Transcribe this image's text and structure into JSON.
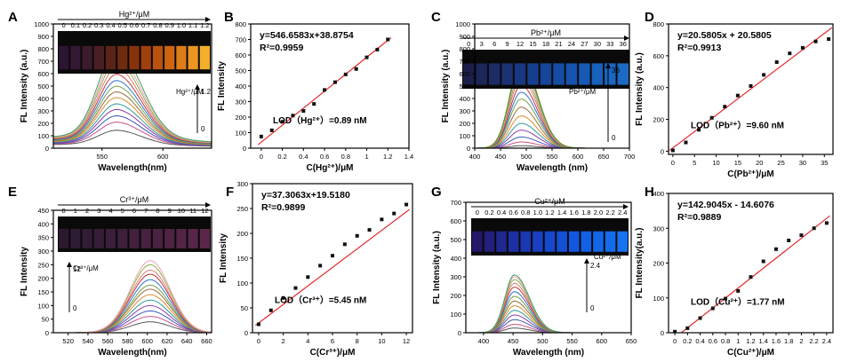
{
  "chart_data": [
    {
      "panel": "A",
      "type": "line",
      "xlabel": "Wavelength(nm)",
      "ylabel": "FL Intensity (a.u.)",
      "xlim": [
        510,
        640
      ],
      "ylim": [
        0,
        1000
      ],
      "xticks": [
        550,
        600
      ],
      "yticks": [
        0,
        100,
        200,
        300,
        400,
        500,
        600,
        700,
        800,
        900,
        1000
      ],
      "photo": {
        "title": "Hg²⁺/μM",
        "labels": [
          "0",
          "0.1",
          "0.2",
          "0.3",
          "0.4",
          "0.5",
          "0.6",
          "0.7",
          "0.8",
          "0.9",
          "1.0",
          "1.1",
          "1.2"
        ],
        "colors": [
          "#2b1530",
          "#321830",
          "#3b1b2c",
          "#4a1f24",
          "#5a2418",
          "#6e2b10",
          "#86330c",
          "#a0400c",
          "#b8520e",
          "#cc6412",
          "#de7c18",
          "#eb9620",
          "#f4b02a"
        ]
      },
      "arrow": {
        "label": "Hg²⁺/μM",
        "top": "1.2",
        "bottom": "0"
      },
      "peak_x": 562,
      "width": 15,
      "peaks": [
        110,
        170,
        215,
        260,
        300,
        345,
        385,
        425,
        465,
        510,
        555,
        600,
        640,
        690
      ],
      "baseline": 160,
      "skew": 1.35
    },
    {
      "panel": "B",
      "type": "scatter",
      "xlabel": "C(Hg²⁺)/μM",
      "ylabel": "FL Intensity",
      "xlim": [
        -0.1,
        1.4
      ],
      "ylim": [
        0,
        800
      ],
      "xticks": [
        0.0,
        0.2,
        0.4,
        0.6,
        0.8,
        1.0,
        1.2,
        1.4
      ],
      "yticks": [
        0,
        100,
        200,
        300,
        400,
        500,
        600,
        700,
        800
      ],
      "x": [
        0.0,
        0.1,
        0.2,
        0.3,
        0.4,
        0.5,
        0.6,
        0.7,
        0.8,
        0.9,
        1.0,
        1.1,
        1.2
      ],
      "y": [
        75,
        115,
        170,
        210,
        240,
        285,
        375,
        425,
        475,
        510,
        585,
        635,
        700
      ],
      "fit": {
        "slope": 546.6583,
        "intercept": 38.8754
      },
      "equation": "y=546.6583x+38.8754",
      "r2": "R²=0.9959",
      "lod": "LOD（Hg²⁺）=0.89 nM"
    },
    {
      "panel": "C",
      "type": "line",
      "xlabel": "Wavelength (nm)",
      "ylabel": "FL Intensity (a.u.)",
      "xlim": [
        400,
        700
      ],
      "ylim": [
        0,
        1000
      ],
      "xticks": [
        400,
        450,
        500,
        550,
        600,
        650,
        700
      ],
      "yticks": [
        0,
        100,
        200,
        300,
        400,
        500,
        600,
        700,
        800,
        900,
        1000
      ],
      "photo": {
        "title": "Pb²⁺/μM",
        "labels": [
          "0",
          "3",
          "6",
          "9",
          "12",
          "15",
          "18",
          "21",
          "24",
          "27",
          "30",
          "33",
          "36"
        ],
        "colors": [
          "#1c1f4a",
          "#1d2658",
          "#1c2c66",
          "#1a3274",
          "#193882",
          "#173e8e",
          "#16459a",
          "#154ca4",
          "#1553ae",
          "#165ab6",
          "#1861bc",
          "#1a66c0",
          "#1c6ac4"
        ]
      },
      "arrow": {
        "label": "Pb²⁺/μM",
        "top": "36",
        "bottom": "0"
      },
      "peak_x": 490,
      "width": 22,
      "peaks": [
        20,
        50,
        90,
        145,
        200,
        260,
        330,
        395,
        450,
        505,
        560,
        605,
        645,
        680,
        705
      ],
      "baseline": 0,
      "skew": 1.45
    },
    {
      "panel": "D",
      "type": "scatter",
      "xlabel": "C(Pb²⁺)/μM",
      "ylabel": "FL Intensity (a.u.)",
      "xlim": [
        -1,
        37
      ],
      "ylim": [
        -20,
        800
      ],
      "xticks": [
        0,
        5,
        10,
        15,
        20,
        25,
        30,
        35
      ],
      "yticks": [
        0,
        200,
        400,
        600,
        800
      ],
      "x": [
        0,
        3,
        6,
        9,
        12,
        15,
        18,
        21,
        24,
        27,
        30,
        33,
        36
      ],
      "y": [
        5,
        55,
        135,
        210,
        280,
        350,
        410,
        480,
        560,
        615,
        650,
        690,
        705
      ],
      "fit": {
        "slope": 20.5805,
        "intercept": 20.5805
      },
      "equation": "y=20.5805x + 20.5805",
      "r2": "R²=0.9913",
      "lod": "LOD（Pb²⁺）=9.60 nM"
    },
    {
      "panel": "E",
      "type": "line",
      "xlabel": "Wavelength(nm)",
      "ylabel": "FL Intensity",
      "xlim": [
        505,
        665
      ],
      "ylim": [
        0,
        450
      ],
      "xticks": [
        520,
        540,
        560,
        580,
        600,
        620,
        640,
        660
      ],
      "yticks": [
        0,
        50,
        100,
        150,
        200,
        250,
        300,
        350,
        400,
        450
      ],
      "photo": {
        "title": "Cr³⁺/μM",
        "labels": [
          "0",
          "1",
          "2",
          "3",
          "4",
          "5",
          "6",
          "7",
          "8",
          "9",
          "10",
          "11",
          "12"
        ],
        "colors": [
          "#2a1a30",
          "#2e1b34",
          "#321c36",
          "#361d38",
          "#3a1e3a",
          "#3e1f3c",
          "#42203e",
          "#462140",
          "#4a2242",
          "#4e2344",
          "#522446",
          "#562548",
          "#5a264a"
        ]
      },
      "arrow": {
        "label": "Cr³⁺/μM",
        "top": "12",
        "bottom": "0"
      },
      "peak_x": 603,
      "width": 20,
      "peaks": [
        40,
        60,
        80,
        100,
        120,
        140,
        160,
        175,
        195,
        215,
        230,
        250,
        265
      ],
      "baseline": 0,
      "skew": 1.0
    },
    {
      "panel": "F",
      "type": "scatter",
      "xlabel": "C(Cr³⁺)/μM",
      "ylabel": "FL Intensity",
      "xlim": [
        -0.5,
        12.5
      ],
      "ylim": [
        0,
        300
      ],
      "xticks": [
        0,
        2,
        4,
        6,
        8,
        10,
        12
      ],
      "yticks": [
        0,
        50,
        100,
        150,
        200,
        250,
        300
      ],
      "x": [
        0,
        1,
        2,
        3,
        4,
        5,
        6,
        7,
        8,
        9,
        10,
        11,
        12
      ],
      "y": [
        17,
        45,
        70,
        90,
        112,
        135,
        155,
        178,
        195,
        207,
        228,
        240,
        258
      ],
      "fit": {
        "slope": 37.3063,
        "intercept": 19.518,
        "x_scale": 0.5
      },
      "equation": "y=37.3063x+19.5180",
      "r2": "R²=0.9899",
      "lod": "LOD（Cr³⁺）=5.45 nM"
    },
    {
      "panel": "G",
      "type": "line",
      "xlabel": "Wavelength (nm)",
      "ylabel": "FL Intensity (a.u.)",
      "xlim": [
        370,
        650
      ],
      "ylim": [
        0,
        700
      ],
      "xticks": [
        400,
        450,
        500,
        550,
        600,
        650
      ],
      "yticks": [
        0,
        100,
        200,
        300,
        400,
        500,
        600,
        700
      ],
      "photo": {
        "title": "Cu²⁺/μM",
        "labels": [
          "0",
          "0.2",
          "0.4",
          "0.6",
          "0.8",
          "1.0",
          "1.2",
          "1.4",
          "1.6",
          "1.8",
          "2.0",
          "2.2",
          "2.4"
        ],
        "colors": [
          "#241868",
          "#22207c",
          "#202890",
          "#1d30a2",
          "#1a38b2",
          "#1840c0",
          "#1648cc",
          "#1450d6",
          "#1258de",
          "#1260e4",
          "#1266e8",
          "#146cec",
          "#1672f0"
        ]
      },
      "arrow": {
        "label": "Cu²⁺/μM",
        "top": "2.4",
        "bottom": "0"
      },
      "peak_x": 452,
      "width": 16,
      "peaks": [
        25,
        45,
        70,
        95,
        120,
        145,
        170,
        195,
        220,
        245,
        265,
        285,
        300,
        310
      ],
      "baseline": 0,
      "skew": 1.6
    },
    {
      "panel": "H",
      "type": "scatter",
      "xlabel": "C(Cu²⁺)/μM",
      "ylabel": "FL Intensity(a.u.)",
      "xlim": [
        -0.1,
        2.5
      ],
      "ylim": [
        0,
        400
      ],
      "xticks": [
        0.0,
        0.2,
        0.4,
        0.6,
        0.8,
        1.0,
        1.2,
        1.4,
        1.6,
        1.8,
        2.0,
        2.2,
        2.4
      ],
      "yticks": [
        0,
        100,
        200,
        300,
        400
      ],
      "x": [
        0.0,
        0.2,
        0.4,
        0.6,
        0.8,
        1.0,
        1.2,
        1.4,
        1.6,
        1.8,
        2.0,
        2.2,
        2.4
      ],
      "y": [
        3,
        13,
        42,
        70,
        98,
        120,
        160,
        205,
        240,
        265,
        280,
        300,
        315
      ],
      "fit": {
        "slope": 142.9045,
        "intercept": -14.6076
      },
      "equation": "y=142.9045x - 14.6076",
      "r2": "R²=0.9889",
      "lod": "LOD（Cu²⁺）=1.77 nM"
    }
  ],
  "colors": {
    "fit_line": "#e52b2b",
    "points": "#111111",
    "spectra": [
      "#555555",
      "#c84f86",
      "#3e57b8",
      "#8a3aa8",
      "#2b9a99",
      "#d98c2a",
      "#9a6b3a",
      "#6fa24a",
      "#2f72d1",
      "#c03737",
      "#e07a7a",
      "#8ab04a",
      "#f0a0b0",
      "#3aa060",
      "#6b8e23"
    ]
  }
}
